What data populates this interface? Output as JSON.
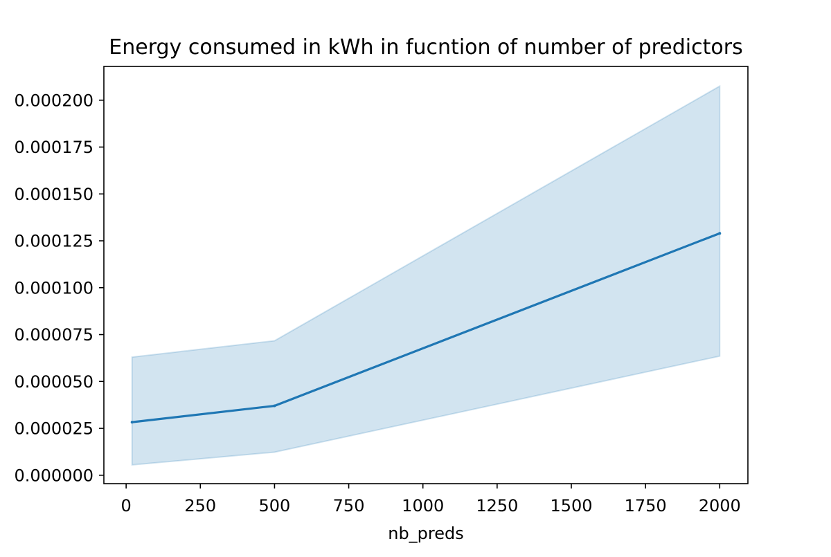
{
  "chart_data": {
    "type": "line",
    "title": "Energy consumed in kWh in fucntion of number of predictors",
    "xlabel": "nb_preds",
    "ylabel": "",
    "x": [
      20,
      500,
      2000
    ],
    "series": [
      {
        "values": [
          2.83e-05,
          3.7e-05,
          0.000129
        ],
        "ci_lower": [
          5.5e-06,
          1.23e-05,
          6.35e-05
        ],
        "ci_upper": [
          6.3e-05,
          7.17e-05,
          0.0002075
        ]
      }
    ],
    "xlim": [
      -75,
      2095
    ],
    "ylim": [
      -4.5e-06,
      0.000218
    ],
    "xticks": [
      0,
      250,
      500,
      750,
      1000,
      1250,
      1500,
      1750,
      2000
    ],
    "xtick_labels": [
      "0",
      "250",
      "500",
      "750",
      "1000",
      "1250",
      "1500",
      "1750",
      "2000"
    ],
    "yticks": [
      0,
      2.5e-05,
      5e-05,
      7.5e-05,
      0.0001,
      0.000125,
      0.00015,
      0.000175,
      0.0002
    ],
    "ytick_labels": [
      "0.000000",
      "0.000025",
      "0.000050",
      "0.000075",
      "0.000100",
      "0.000125",
      "0.000150",
      "0.000175",
      "0.000200"
    ],
    "grid": false,
    "legend": "none",
    "colors": {
      "line": "#1f77b4",
      "band": "#1f77b4"
    }
  }
}
